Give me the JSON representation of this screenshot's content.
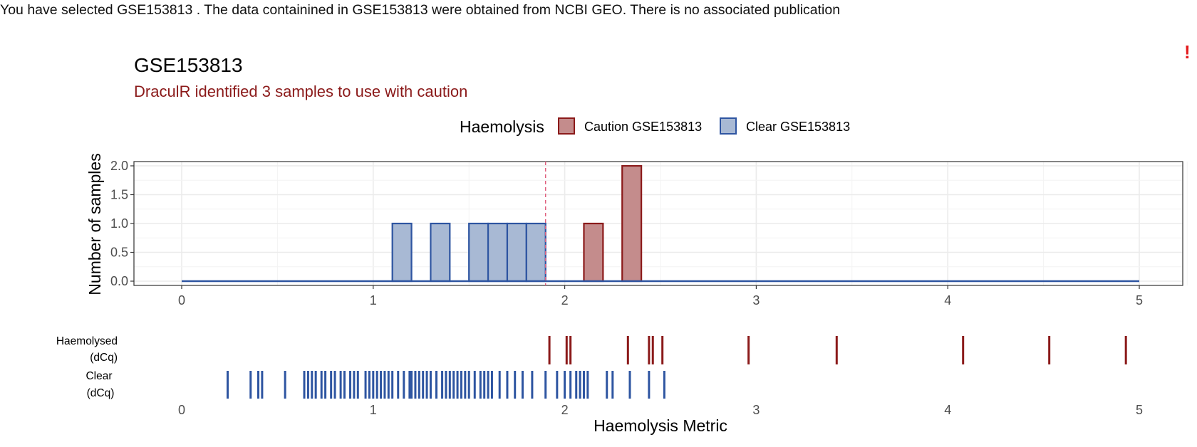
{
  "info_text": "You have selected GSE153813 . The data containined in GSE153813 were obtained from NCBI GEO. There is no associated publication",
  "warning_mark": "!",
  "colors": {
    "caution_fill": "#c48c8c",
    "caution_stroke": "#8b1a1a",
    "clear_fill": "#a8b9d4",
    "clear_stroke": "#2e55a1",
    "threshold_line": "#e0607e",
    "subtitle": "#8b1a1a"
  },
  "chart_data": [
    {
      "type": "bar",
      "title": "GSE153813",
      "subtitle": "DraculR identified 3 samples to use with caution",
      "ylabel": "Number of samples",
      "xlabel": "",
      "xlim": [
        -0.25,
        5.25
      ],
      "ylim": [
        -0.1,
        2.1
      ],
      "x_ticks": [
        "0",
        "1",
        "2",
        "3",
        "4",
        "5"
      ],
      "y_ticks": [
        "0.0",
        "0.5",
        "1.0",
        "1.5",
        "2.0"
      ],
      "grid": true,
      "legend": {
        "title": "Haemolysis",
        "position": "top",
        "entries": [
          "Caution GSE153813",
          "Clear GSE153813"
        ]
      },
      "bin_width": 0.1,
      "threshold": 1.9,
      "bars": [
        {
          "x": 1.15,
          "value": 1,
          "group": "clear"
        },
        {
          "x": 1.35,
          "value": 1,
          "group": "clear"
        },
        {
          "x": 1.55,
          "value": 1,
          "group": "clear"
        },
        {
          "x": 1.65,
          "value": 1,
          "group": "clear"
        },
        {
          "x": 1.75,
          "value": 1,
          "group": "clear"
        },
        {
          "x": 1.85,
          "value": 1,
          "group": "clear"
        },
        {
          "x": 2.15,
          "value": 1,
          "group": "caution"
        },
        {
          "x": 2.35,
          "value": 2,
          "group": "caution"
        }
      ]
    },
    {
      "type": "scatter",
      "xlabel": "Haemolysis Metric",
      "xlim": [
        -0.25,
        5.25
      ],
      "x_ticks": [
        "0",
        "1",
        "2",
        "3",
        "4",
        "5"
      ],
      "rows": [
        {
          "label_line1": "Haemolysed",
          "label_line2": "(dCq)",
          "group": "caution",
          "values": [
            1.92,
            2.01,
            2.03,
            2.33,
            2.44,
            2.46,
            2.51,
            2.96,
            3.42,
            4.08,
            4.53,
            4.93
          ]
        },
        {
          "label_line1": "Clear",
          "label_line2": "(dCq)",
          "group": "clear",
          "values": [
            0.24,
            0.36,
            0.4,
            0.42,
            0.54,
            0.64,
            0.66,
            0.68,
            0.7,
            0.73,
            0.75,
            0.78,
            0.8,
            0.83,
            0.85,
            0.88,
            0.9,
            0.92,
            0.96,
            0.98,
            1.0,
            1.02,
            1.04,
            1.06,
            1.08,
            1.1,
            1.13,
            1.16,
            1.19,
            1.2,
            1.22,
            1.24,
            1.26,
            1.28,
            1.3,
            1.33,
            1.36,
            1.38,
            1.4,
            1.42,
            1.44,
            1.46,
            1.48,
            1.5,
            1.53,
            1.56,
            1.58,
            1.6,
            1.62,
            1.66,
            1.7,
            1.74,
            1.78,
            1.83,
            1.9,
            1.96,
            2.0,
            2.03,
            2.06,
            2.08,
            2.1,
            2.12,
            2.22,
            2.25,
            2.34,
            2.44,
            2.52
          ]
        }
      ]
    }
  ]
}
